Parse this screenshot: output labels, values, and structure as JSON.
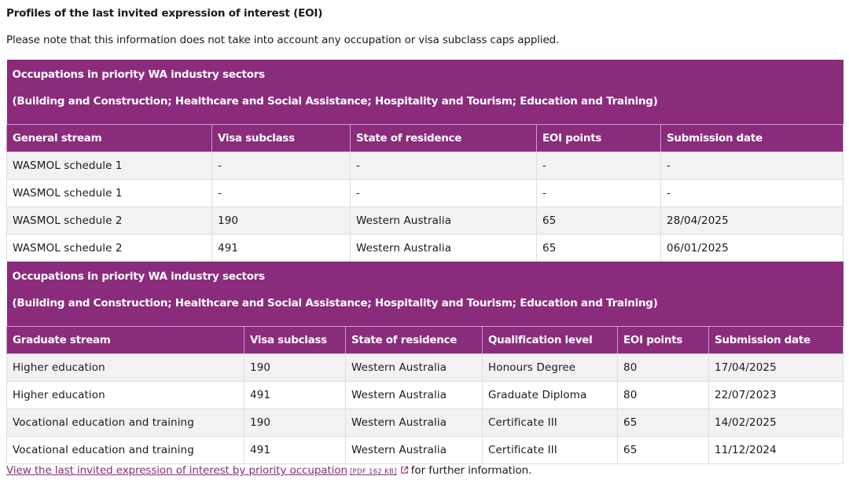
{
  "heading": "Profiles of the last invited expression of interest (EOI)",
  "note": "Please note that this information does not take into account any occupation or visa subclass caps applied.",
  "table1": {
    "banner_title": "Occupations in priority WA industry sectors",
    "banner_sub": "(Building and Construction; Healthcare and Social Assistance; Hospitality and Tourism; Education and Training)",
    "headers": [
      "General stream",
      "Visa subclass",
      "State of residence",
      "EOI points",
      "Submission date"
    ],
    "rows": [
      [
        "WASMOL schedule 1",
        "-",
        "-",
        "-",
        "-"
      ],
      [
        "WASMOL schedule 1",
        "-",
        "-",
        "-",
        "-"
      ],
      [
        "WASMOL schedule 2",
        "190",
        "Western Australia",
        "65",
        "28/04/2025"
      ],
      [
        "WASMOL schedule 2",
        "491",
        "Western Australia",
        "65",
        "06/01/2025"
      ]
    ]
  },
  "table2": {
    "banner_title": "Occupations in priority WA industry sectors",
    "banner_sub": "(Building and Construction; Healthcare and Social Assistance; Hospitality and Tourism; Education and Training)",
    "headers": [
      "Graduate stream",
      "Visa subclass",
      "State of residence",
      "Qualification level",
      "EOI points",
      "Submission date"
    ],
    "rows": [
      [
        "Higher education",
        "190",
        "Western Australia",
        "Honours Degree",
        "80",
        "17/04/2025"
      ],
      [
        "Higher education",
        "491",
        "Western Australia",
        "Graduate Diploma",
        "80",
        "22/07/2023"
      ],
      [
        "Vocational education and training",
        "190",
        "Western Australia",
        "Certificate III",
        "65",
        "14/02/2025"
      ],
      [
        "Vocational education and training",
        "491",
        "Western Australia",
        "Certificate III",
        "65",
        "11/12/2024"
      ]
    ]
  },
  "footer": {
    "link_text": "View the last invited expression of interest by priority occupation",
    "file_meta": "[PDF 162 KB]",
    "external_icon": "external-link-icon",
    "suffix": "for further information."
  },
  "colors": {
    "accent": "#8a2b7c",
    "row_alt": "#f2f2f2",
    "border": "#dedede"
  }
}
